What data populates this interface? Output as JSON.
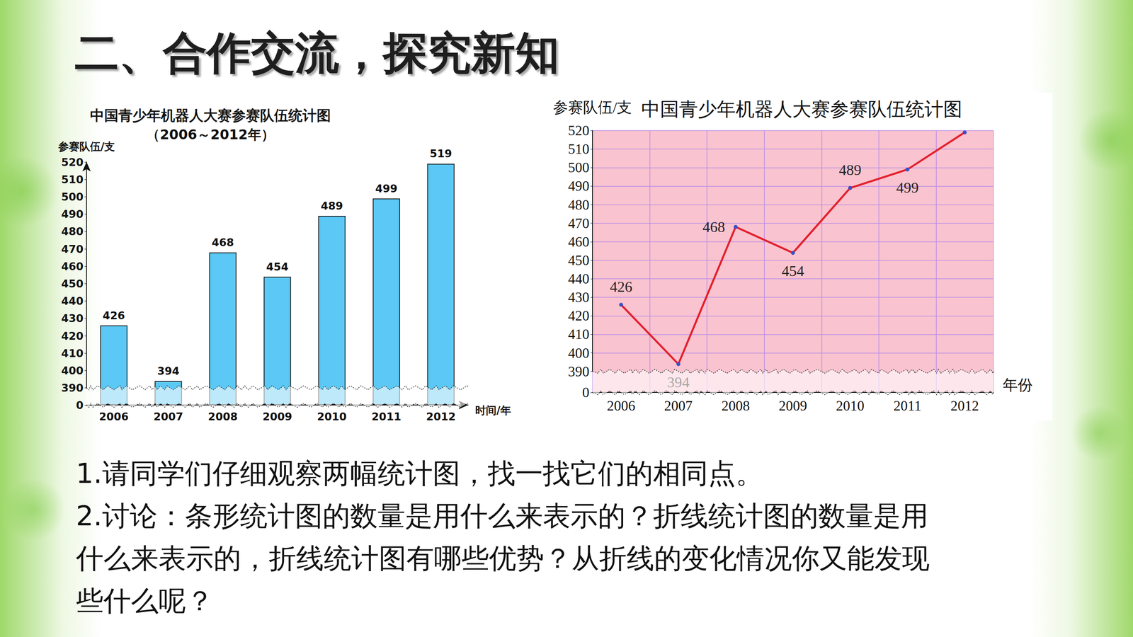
{
  "heading": "二、合作交流，探究新知",
  "chart_data": [
    {
      "type": "bar",
      "title": "中国青少年机器人大赛参赛队伍统计图",
      "subtitle": "（2006～2012年）",
      "xlabel": "时间/年",
      "ylabel": "参赛队伍/支",
      "categories": [
        "2006",
        "2007",
        "2008",
        "2009",
        "2010",
        "2011",
        "2012"
      ],
      "values": [
        426,
        394,
        468,
        454,
        489,
        499,
        519
      ],
      "color": "#5bc8f5",
      "ylim": [
        0,
        520
      ],
      "yticks": [
        0,
        390,
        400,
        410,
        420,
        430,
        440,
        450,
        460,
        470,
        480,
        490,
        500,
        510,
        520
      ],
      "grid": false,
      "data_labels": true
    },
    {
      "type": "line",
      "title": "中国青少年机器人大赛参赛队伍统计图",
      "xlabel": "年份",
      "ylabel": "参赛队伍/支",
      "categories": [
        "2006",
        "2007",
        "2008",
        "2009",
        "2010",
        "2011",
        "2012"
      ],
      "values": [
        426,
        394,
        468,
        454,
        489,
        499,
        519
      ],
      "value_labels": [
        "426",
        "394",
        "468",
        "454",
        "489",
        "499",
        null
      ],
      "color": "#e3202c",
      "marker": "circle",
      "line_style": "solid",
      "ylim": [
        0,
        520
      ],
      "yticks": [
        0,
        390,
        400,
        410,
        420,
        430,
        440,
        450,
        460,
        470,
        480,
        490,
        500,
        510,
        520
      ],
      "grid": true,
      "data_labels": true
    }
  ],
  "questions": [
    "1.请同学们仔细观察两幅统计图，找一找它们的相同点。",
    "2.讨论：条形统计图的数量是用什么来表示的？折线统计图的数量是用什么来表示的，折线统计图有哪些优势？从折线的变化情况你又能发现些什么呢？"
  ]
}
